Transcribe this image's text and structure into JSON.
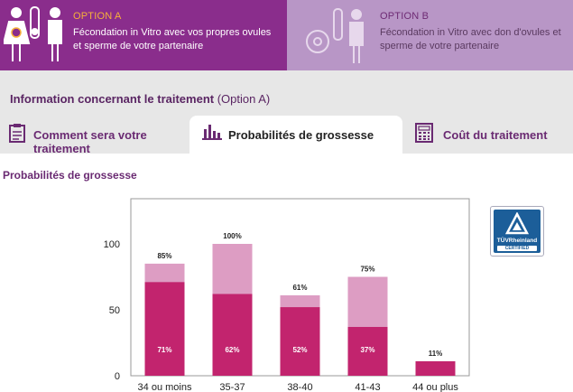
{
  "options": [
    {
      "tag": "OPTION A",
      "description": "Fécondation in Vitro avec vos propres ovules et sperme de votre partenaire"
    },
    {
      "tag": "OPTION B",
      "description": "Fécondation in Vitro avec don d'ovules et sperme de votre partenaire"
    }
  ],
  "info": {
    "title_bold": "Information concernant le traitement",
    "title_suffix": " (Option A)"
  },
  "tabs": [
    {
      "label": "Comment sera votre traitement"
    },
    {
      "label": "Probabilités de grossesse"
    },
    {
      "label": "Coût du traitement"
    }
  ],
  "section_title": "Probabilités de grossesse",
  "badge": {
    "name": "TÜVRheinland",
    "cert": "CERTIFIED"
  },
  "colors": {
    "option_a": "#8a2d8c",
    "option_b": "#b896c6",
    "bar_dark": "#c2246e",
    "bar_light": "#dd9dc3",
    "accent_orange": "#f7b13a"
  },
  "icons": {
    "option_a": "couple-test-tube-icon",
    "option_b": "couple-egg-icon",
    "tab1": "clipboard-icon",
    "tab2": "bar-chart-icon",
    "tab3": "calculator-icon"
  },
  "chart_data": {
    "type": "bar",
    "categories": [
      "34 ou moins",
      "35-37",
      "38-40",
      "41-43",
      "44 ou plus"
    ],
    "series": [
      {
        "values": [
          71,
          62,
          52,
          37,
          11
        ],
        "labels": [
          "71%",
          "62%",
          "52%",
          "37%",
          "11%"
        ]
      },
      {
        "values": [
          85,
          100,
          61,
          75,
          null
        ],
        "labels": [
          "85%",
          "100%",
          "61%",
          "75%",
          ""
        ]
      }
    ],
    "yticks": [
      0,
      50,
      100
    ],
    "ylim": [
      0,
      135
    ],
    "grid": false
  }
}
